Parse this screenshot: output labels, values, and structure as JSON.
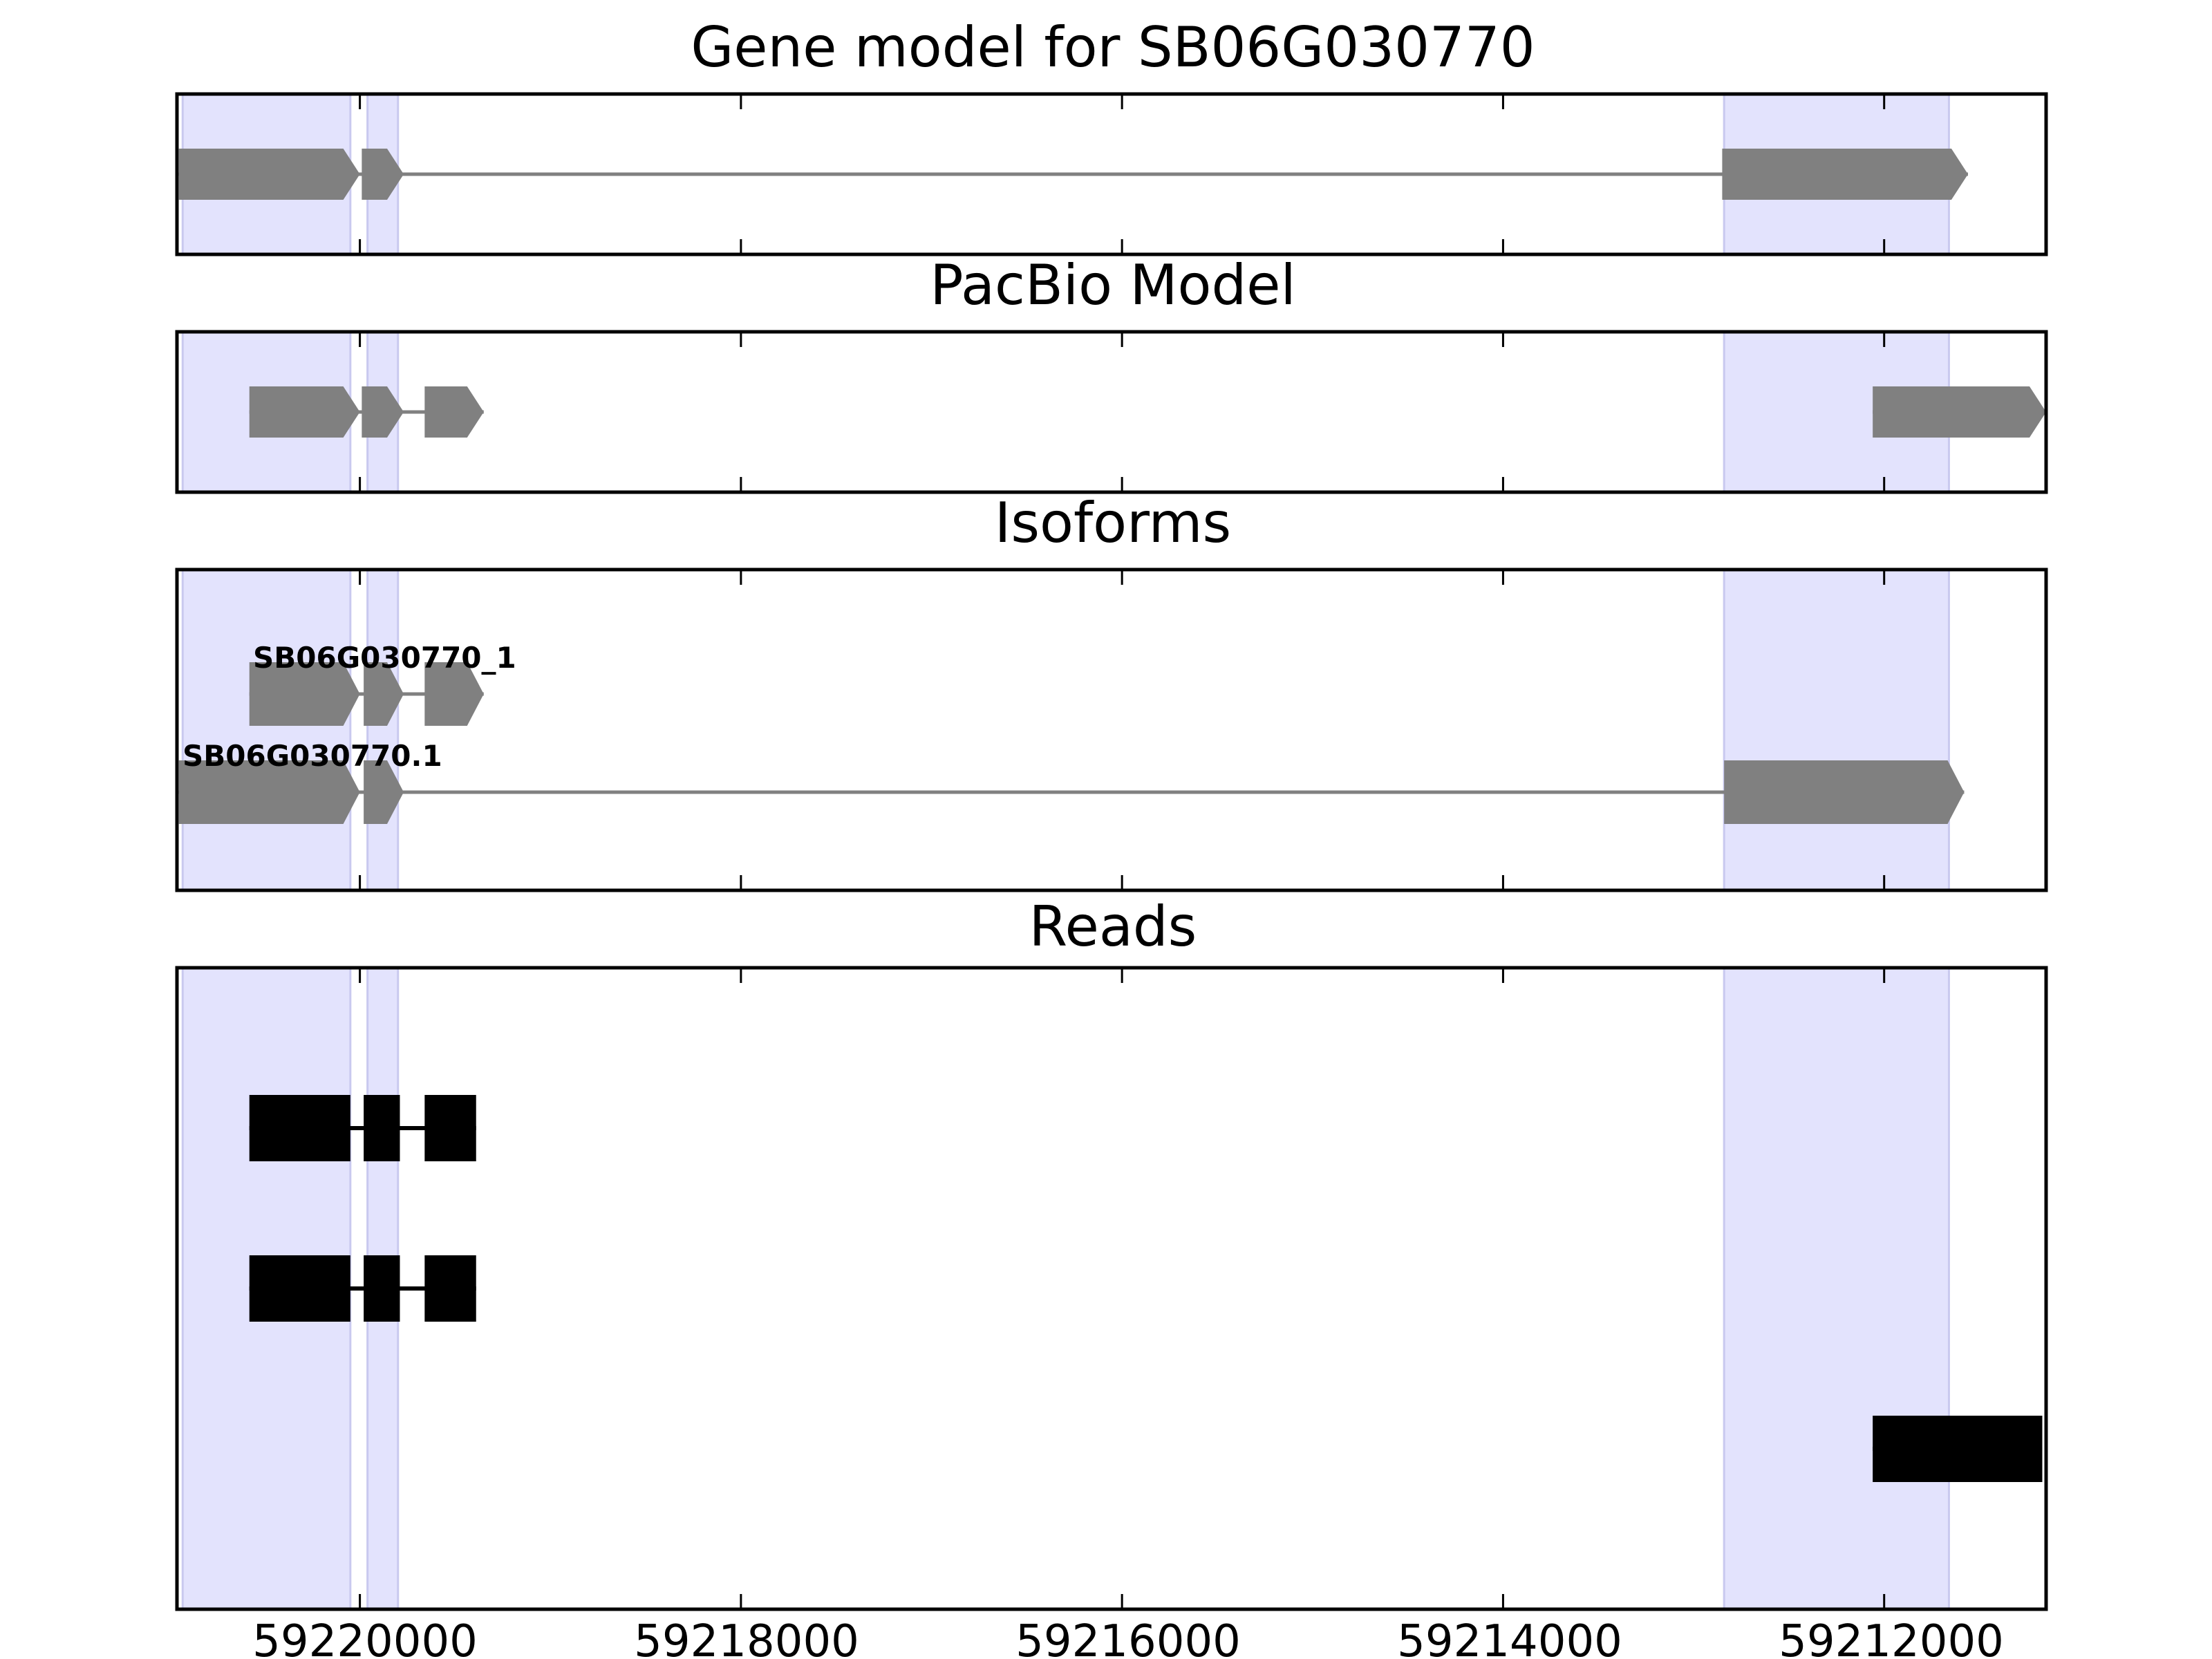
{
  "chart_data": {
    "type": "gene-track",
    "x_axis": {
      "reversed": true,
      "xlim": [
        59220960,
        59211150
      ],
      "ticks": [
        59220000,
        59218000,
        59216000,
        59214000,
        59212000
      ],
      "tick_labels": [
        "59220000",
        "59218000",
        "59216000",
        "59214000",
        "59212000"
      ]
    },
    "highlight_regions": [
      [
        59220930,
        59220050
      ],
      [
        59219960,
        59219800
      ],
      [
        59212840,
        59211660
      ]
    ],
    "colors": {
      "feature": "#808080",
      "read": "#000000",
      "highlight": "#e3e3fd",
      "highlight_edge": "#c9c9ef"
    },
    "panels": [
      {
        "id": "gene-model",
        "title": "Gene model for SB06G030770",
        "rows": [
          {
            "label": "",
            "line": [
              59220950,
              59211560
            ],
            "exons": [
              [
                59220950,
                59220000
              ],
              [
                59219990,
                59219770
              ],
              [
                59212850,
                59211560
              ]
            ]
          }
        ]
      },
      {
        "id": "pacbio",
        "title": "PacBio Model",
        "rows": [
          {
            "label": "",
            "line": [
              59220580,
              59219350
            ],
            "exons": [
              [
                59220580,
                59220000
              ],
              [
                59219990,
                59219770
              ],
              [
                59219660,
                59219350
              ]
            ]
          },
          {
            "label": "",
            "line": [
              59212060,
              59211150
            ],
            "exons": [
              [
                59212060,
                59211150
              ]
            ]
          }
        ]
      },
      {
        "id": "isoforms",
        "title": "Isoforms",
        "rows": [
          {
            "label": "SB06G030770_1",
            "line": [
              59220580,
              59219350
            ],
            "exons": [
              [
                59220580,
                59220000
              ],
              [
                59219980,
                59219770
              ],
              [
                59219660,
                59219350
              ]
            ]
          },
          {
            "label": "SB06G030770.1",
            "line": [
              59220950,
              59211580
            ],
            "exons": [
              [
                59220950,
                59220000
              ],
              [
                59219980,
                59219770
              ],
              [
                59212840,
                59211580
              ]
            ]
          }
        ]
      },
      {
        "id": "reads",
        "title": "Reads",
        "rows": [
          {
            "line": [
              59220580,
              59219390
            ],
            "exons": [
              [
                59220580,
                59220050
              ],
              [
                59219980,
                59219790
              ],
              [
                59219660,
                59219390
              ]
            ]
          },
          {
            "line": [
              59220580,
              59219390
            ],
            "exons": [
              [
                59220580,
                59220050
              ],
              [
                59219980,
                59219790
              ],
              [
                59219660,
                59219390
              ]
            ]
          },
          {
            "line": [
              59212060,
              59211170
            ],
            "exons": [
              [
                59212060,
                59211170
              ]
            ]
          }
        ]
      }
    ]
  }
}
